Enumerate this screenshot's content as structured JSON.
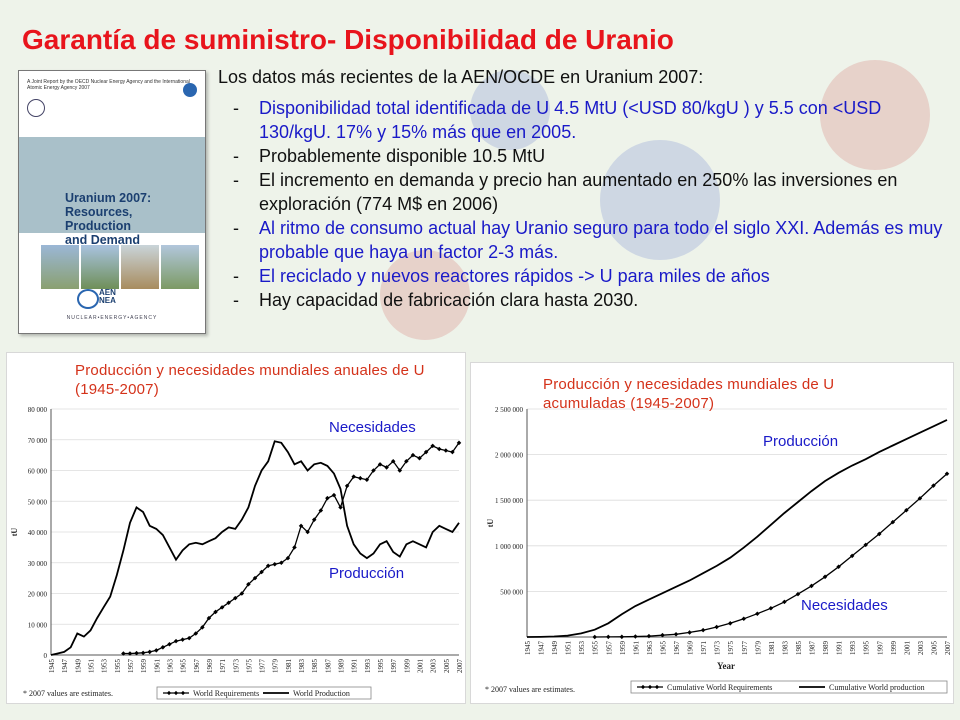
{
  "title": "Garantía de suministro- Disponibilidad de Uranio",
  "book": {
    "header": "A Joint Report by the OECD Nuclear Energy Agency and the International Atomic Energy Agency 2007",
    "title_line1": "Uranium 2007:",
    "title_line2": "Resources, Production",
    "title_line3": "and Demand",
    "aen": "AEN",
    "nea": "NEA",
    "agency": "NUCLEAR•ENERGY•AGENCY"
  },
  "intro": "Los datos más recientes de la AEN/OCDE en Uranium 2007:",
  "bullets": [
    {
      "text": "Disponibilidad total identificada de U 4.5 MtU (<USD 80/kgU ) y 5.5 con <USD 130/kgU. 17% y 15% más que en 2005.",
      "color": "blue"
    },
    {
      "text": "Probablemente disponible 10.5 MtU",
      "color": "black"
    },
    {
      "text": "El incremento en demanda y precio han aumentado en 250% las inversiones en exploración (774 M$ en 2006)",
      "color": "black"
    },
    {
      "text": "Al ritmo de consumo actual hay Uranio seguro para todo el siglo XXI. Además es muy probable que haya un factor 2-3 más.",
      "color": "blue"
    },
    {
      "text": "El reciclado y nuevos reactores rápidos -> U para miles de años",
      "color": "blue"
    },
    {
      "text": "Hay capacidad de fabricación clara hasta 2030.",
      "color": "black"
    }
  ],
  "colors": {
    "title": "#e8141c",
    "blue_text": "#1a1ac8",
    "chart_title": "#d4321a"
  },
  "chart_data": [
    {
      "type": "line",
      "title": "Producción y necesidades mundiales anuales de U (1945-2007)",
      "ylabel": "tU",
      "ylim": [
        0,
        80000
      ],
      "yticks": [
        "0",
        "10 000",
        "20 000",
        "30 000",
        "40 000",
        "50 000",
        "60 000",
        "70 000",
        "80 000"
      ],
      "xlim": [
        1945,
        2007
      ],
      "x_tick_labels": [
        "1945",
        "1947",
        "1949",
        "1951",
        "1953",
        "1955",
        "1957",
        "1959",
        "1961",
        "1963",
        "1965",
        "1967",
        "1969",
        "1971",
        "1973",
        "1975",
        "1977",
        "1979",
        "1981",
        "1983",
        "1985",
        "1987",
        "1989",
        "1991",
        "1993",
        "1995",
        "1997",
        "1999",
        "2001",
        "2003",
        "2005",
        "2007"
      ],
      "annotations": [
        "Necesidades",
        "Producción"
      ],
      "note": "* 2007 values are estimates.",
      "series": [
        {
          "name": "World Requirements",
          "x": [
            1956,
            1957,
            1958,
            1959,
            1960,
            1961,
            1962,
            1963,
            1964,
            1965,
            1966,
            1967,
            1968,
            1969,
            1970,
            1971,
            1972,
            1973,
            1974,
            1975,
            1976,
            1977,
            1978,
            1979,
            1980,
            1981,
            1982,
            1983,
            1984,
            1985,
            1986,
            1987,
            1988,
            1989,
            1990,
            1991,
            1992,
            1993,
            1994,
            1995,
            1996,
            1997,
            1998,
            1999,
            2000,
            2001,
            2002,
            2003,
            2004,
            2005,
            2006,
            2007
          ],
          "y": [
            500,
            500,
            600,
            700,
            1000,
            1500,
            2500,
            3500,
            4500,
            5000,
            5500,
            7000,
            9000,
            12000,
            14000,
            15500,
            17000,
            18500,
            20000,
            23000,
            25000,
            27000,
            29000,
            29500,
            30000,
            31500,
            35000,
            42000,
            40000,
            44000,
            47000,
            51000,
            52000,
            48000,
            55000,
            58000,
            57500,
            57000,
            60000,
            62000,
            61000,
            63000,
            60000,
            63000,
            65000,
            64000,
            66000,
            68000,
            67000,
            66500,
            66000,
            69000
          ]
        },
        {
          "name": "World Production",
          "x": [
            1945,
            1946,
            1947,
            1948,
            1949,
            1950,
            1951,
            1952,
            1953,
            1954,
            1955,
            1956,
            1957,
            1958,
            1959,
            1960,
            1961,
            1962,
            1963,
            1964,
            1965,
            1966,
            1967,
            1968,
            1969,
            1970,
            1971,
            1972,
            1973,
            1974,
            1975,
            1976,
            1977,
            1978,
            1979,
            1980,
            1981,
            1982,
            1983,
            1984,
            1985,
            1986,
            1987,
            1988,
            1989,
            1990,
            1991,
            1992,
            1993,
            1994,
            1995,
            1996,
            1997,
            1998,
            1999,
            2000,
            2001,
            2002,
            2003,
            2004,
            2005,
            2006,
            2007
          ],
          "y": [
            0,
            500,
            1000,
            2500,
            7000,
            6000,
            8000,
            12000,
            15500,
            19000,
            26000,
            34000,
            43000,
            48000,
            46500,
            42000,
            41000,
            39000,
            35000,
            31000,
            34000,
            36000,
            36500,
            36000,
            37000,
            38000,
            40000,
            41500,
            41000,
            44000,
            48000,
            55000,
            60000,
            63000,
            69500,
            69000,
            66000,
            62000,
            63000,
            60000,
            62000,
            62500,
            61500,
            59000,
            54000,
            42000,
            36000,
            33000,
            31500,
            33000,
            36000,
            37000,
            33500,
            32000,
            36000,
            37000,
            36000,
            35000,
            40000,
            42000,
            41000,
            40000,
            43000
          ]
        }
      ]
    },
    {
      "type": "line",
      "title": "Producción y necesidades mundiales de U acumuladas (1945-2007)",
      "ylabel": "tU",
      "xlabel": "Year",
      "ylim": [
        0,
        2500000
      ],
      "yticks": [
        "500 000",
        "1 000 000",
        "1 500 000",
        "2 000 000",
        "2 500 000"
      ],
      "xlim": [
        1945,
        2007
      ],
      "x_tick_labels": [
        "1945",
        "1947",
        "1949",
        "1951",
        "1953",
        "1955",
        "1957",
        "1959",
        "1961",
        "1963",
        "1965",
        "1967",
        "1969",
        "1971",
        "1973",
        "1975",
        "1977",
        "1979",
        "1981",
        "1983",
        "1985",
        "1987",
        "1989",
        "1991",
        "1993",
        "1995",
        "1997",
        "1999",
        "2001",
        "2003",
        "2005",
        "2007"
      ],
      "annotations": [
        "Producción",
        "Necesidades"
      ],
      "note": "* 2007 values are estimates.",
      "series": [
        {
          "name": "Cumulative World Requirements",
          "x": [
            1955,
            1957,
            1959,
            1961,
            1963,
            1965,
            1967,
            1969,
            1971,
            1973,
            1975,
            1977,
            1979,
            1981,
            1983,
            1985,
            1987,
            1989,
            1991,
            1993,
            1995,
            1997,
            1999,
            2001,
            2003,
            2005,
            2007
          ],
          "y": [
            0,
            1000,
            2000,
            5000,
            10000,
            20000,
            30000,
            50000,
            75000,
            110000,
            150000,
            200000,
            255000,
            315000,
            385000,
            470000,
            560000,
            660000,
            770000,
            890000,
            1010000,
            1130000,
            1260000,
            1390000,
            1520000,
            1660000,
            1790000
          ]
        },
        {
          "name": "Cumulative World production",
          "x": [
            1945,
            1947,
            1949,
            1951,
            1953,
            1955,
            1957,
            1959,
            1961,
            1963,
            1965,
            1967,
            1969,
            1971,
            1973,
            1975,
            1977,
            1979,
            1981,
            1983,
            1985,
            1987,
            1989,
            1991,
            1993,
            1995,
            1997,
            1999,
            2001,
            2003,
            2005,
            2007
          ],
          "y": [
            0,
            1000,
            5000,
            15000,
            40000,
            80000,
            150000,
            250000,
            340000,
            410000,
            480000,
            550000,
            620000,
            700000,
            780000,
            870000,
            980000,
            1100000,
            1230000,
            1360000,
            1480000,
            1600000,
            1710000,
            1800000,
            1880000,
            1950000,
            2030000,
            2100000,
            2170000,
            2240000,
            2310000,
            2380000
          ]
        }
      ]
    }
  ]
}
